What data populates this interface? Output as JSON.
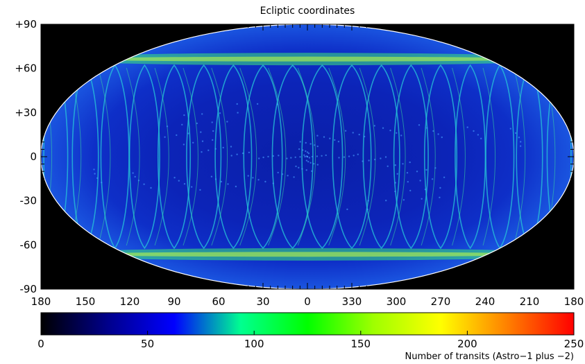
{
  "chart_data": [
    {
      "type": "heatmap",
      "title": "Ecliptic coordinates",
      "projection": "Aitoff/Hammer all-sky ellipse",
      "x_ticks": [
        "180",
        "150",
        "120",
        "90",
        "60",
        "30",
        "0",
        "330",
        "300",
        "270",
        "240",
        "210",
        "180"
      ],
      "y_ticks": [
        "+90",
        "+60",
        "+30",
        "0",
        "-30",
        "-60",
        "-90"
      ],
      "xlim": [
        180,
        -180
      ],
      "ylim": [
        -90,
        90
      ],
      "grid": false,
      "description_of_values": "counts per sky cell; dense crossing-loop pattern, bands of high counts near latitude ±50",
      "high_count_bands_latitude": [
        50,
        -50
      ],
      "colors": {
        "background": "#000000",
        "outline": "#ffffff"
      }
    },
    {
      "type": "colorbar",
      "label": "Number of transits (Astro−1 plus −2)",
      "ticks": [
        "0",
        "50",
        "100",
        "150",
        "200",
        "250"
      ],
      "range": [
        0,
        250
      ],
      "colormap": [
        "#000000",
        "#00008b",
        "#0000ff",
        "#00ff90",
        "#00ff00",
        "#a0ff00",
        "#ffff00",
        "#ff8000",
        "#ff0000"
      ]
    }
  ]
}
